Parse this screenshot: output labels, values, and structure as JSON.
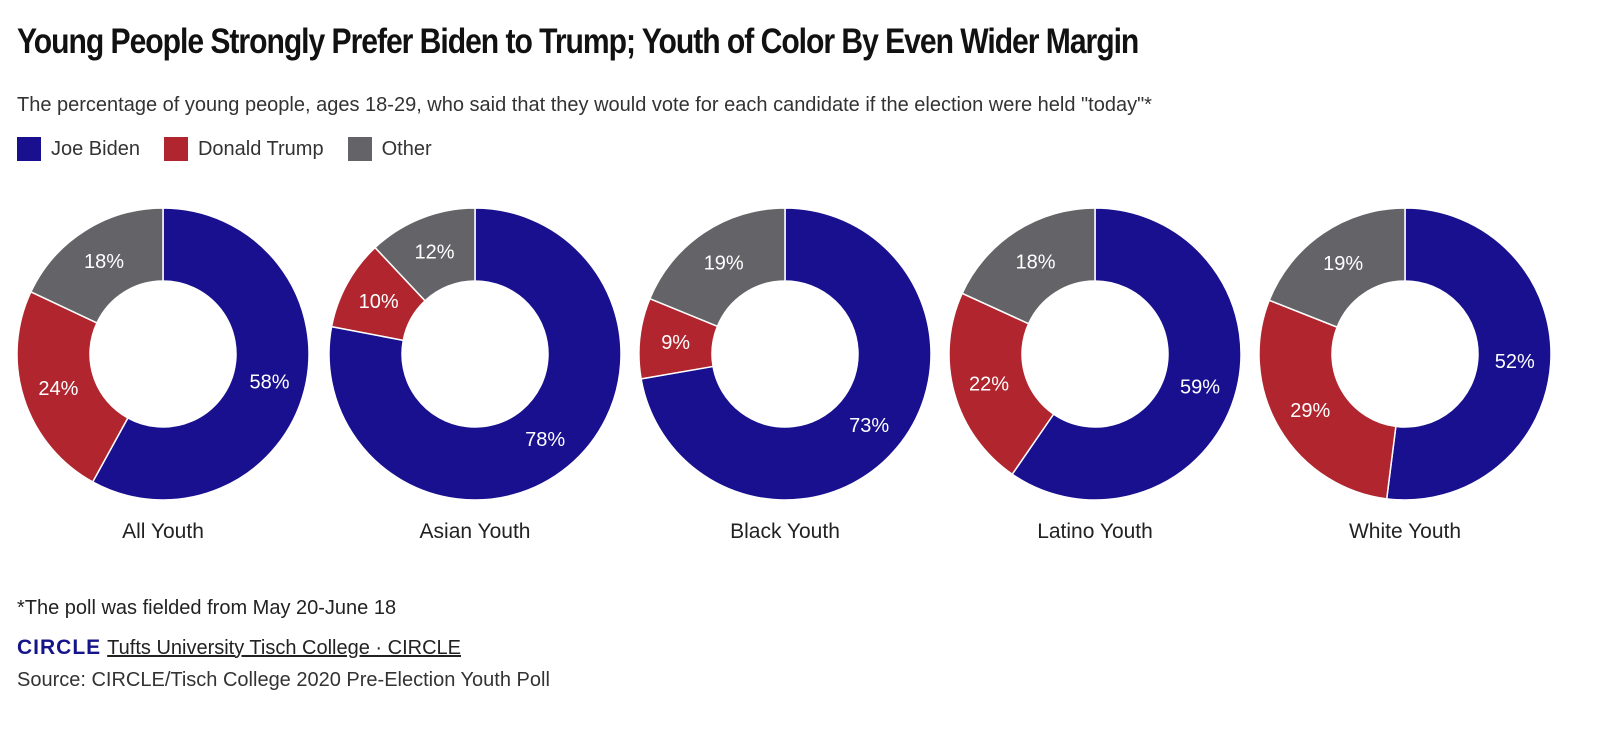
{
  "title": "Young People Strongly Prefer Biden to Trump; Youth of Color By Even Wider Margin",
  "subtitle": "The percentage of young people, ages 18-29, who said that they would vote for each candidate if the election were held \"today\"*",
  "legend": [
    {
      "label": "Joe Biden",
      "color": "#18108f"
    },
    {
      "label": "Donald Trump",
      "color": "#b0252e"
    },
    {
      "label": "Other",
      "color": "#646468"
    }
  ],
  "chart_data": {
    "type": "pie",
    "variant": "donut",
    "series_names": [
      "Joe Biden",
      "Donald Trump",
      "Other"
    ],
    "colors": [
      "#18108f",
      "#b0252e",
      "#646468"
    ],
    "groups": [
      {
        "label": "All Youth",
        "values": [
          58,
          24,
          18
        ]
      },
      {
        "label": "Asian Youth",
        "values": [
          78,
          10,
          12
        ]
      },
      {
        "label": "Black Youth",
        "values": [
          73,
          9,
          19
        ]
      },
      {
        "label": "Latino Youth",
        "values": [
          59,
          22,
          18
        ]
      },
      {
        "label": "White Youth",
        "values": [
          52,
          29,
          19
        ]
      }
    ],
    "value_suffix": "%"
  },
  "footnote": "*The poll was fielded from May 20-June 18",
  "credit": {
    "logo": "CIRCLE",
    "link_text": "Tufts University Tisch College · CIRCLE"
  },
  "source": "Source: CIRCLE/Tisch College 2020 Pre-Election Youth Poll"
}
